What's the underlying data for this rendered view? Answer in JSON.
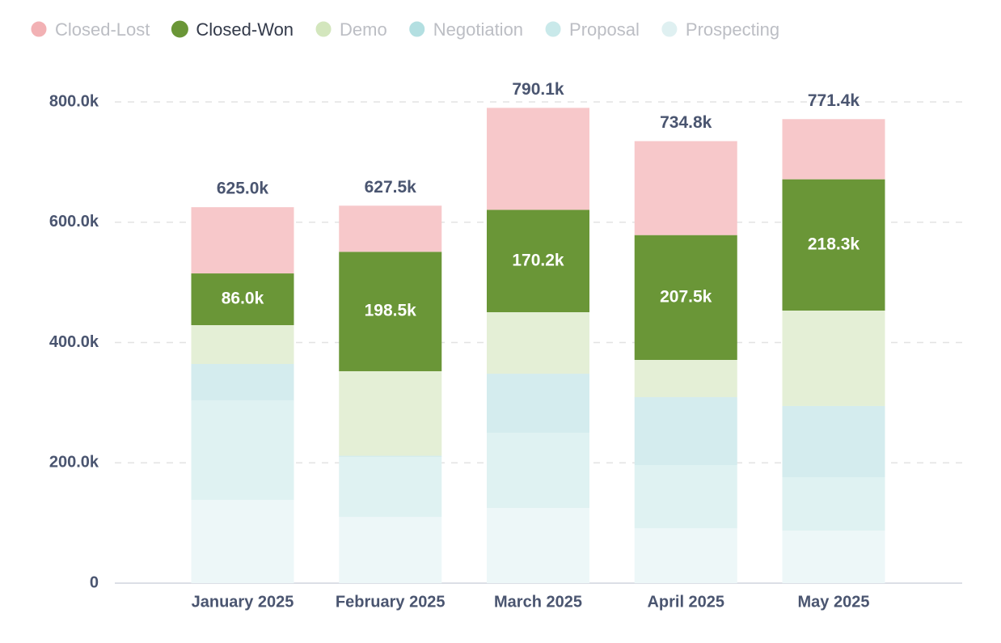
{
  "chart_data": {
    "type": "stacked_bar",
    "categories": [
      "January 2025",
      "February 2025",
      "March 2025",
      "April 2025",
      "May 2025"
    ],
    "series": [
      {
        "name": "Prospecting",
        "color": "#edf7f8",
        "marker": "#dff0f1",
        "values": [
          138500,
          110200,
          125000,
          91400,
          87400
        ]
      },
      {
        "name": "Proposal",
        "color": "#dff2f2",
        "marker": "#c9e9ea",
        "values": [
          165400,
          99500,
          125100,
          104900,
          88700
        ]
      },
      {
        "name": "Negotiation",
        "color": "#d4ecee",
        "marker": "#b3dfe1",
        "values": [
          60500,
          2000,
          98100,
          112900,
          118400
        ]
      },
      {
        "name": "Demo",
        "color": "#e4efd6",
        "marker": "#d3e6bd",
        "values": [
          64500,
          140600,
          102200,
          61900,
          158600
        ]
      },
      {
        "name": "Closed-Won",
        "color": "#6a9637",
        "marker": "#6a9637",
        "values": [
          86000,
          198500,
          170200,
          207500,
          218300
        ],
        "value_labels": [
          "86.0k",
          "198.5k",
          "170.2k",
          "207.5k",
          "218.3k"
        ]
      },
      {
        "name": "Closed-Lost",
        "color": "#f7c8ca",
        "marker": "#f2b1b4",
        "values": [
          110100,
          76700,
          169500,
          156200,
          100000
        ]
      }
    ],
    "totals": {
      "values": [
        625000,
        627500,
        790100,
        734800,
        771400
      ],
      "value_labels": [
        "625.0k",
        "627.5k",
        "790.1k",
        "734.8k",
        "771.4k"
      ]
    },
    "legend_order": [
      5,
      4,
      3,
      2,
      1,
      0
    ],
    "legend_active": [
      "Closed-Won"
    ],
    "ylim": [
      0,
      800000
    ],
    "yticks": [
      0,
      {
        "value": 200000,
        "label": "200.0k"
      },
      {
        "value": 400000,
        "label": "400.0k"
      },
      {
        "value": 600000,
        "label": "600.0k"
      },
      {
        "value": 800000,
        "label": "800.0k"
      }
    ],
    "grid": true
  }
}
